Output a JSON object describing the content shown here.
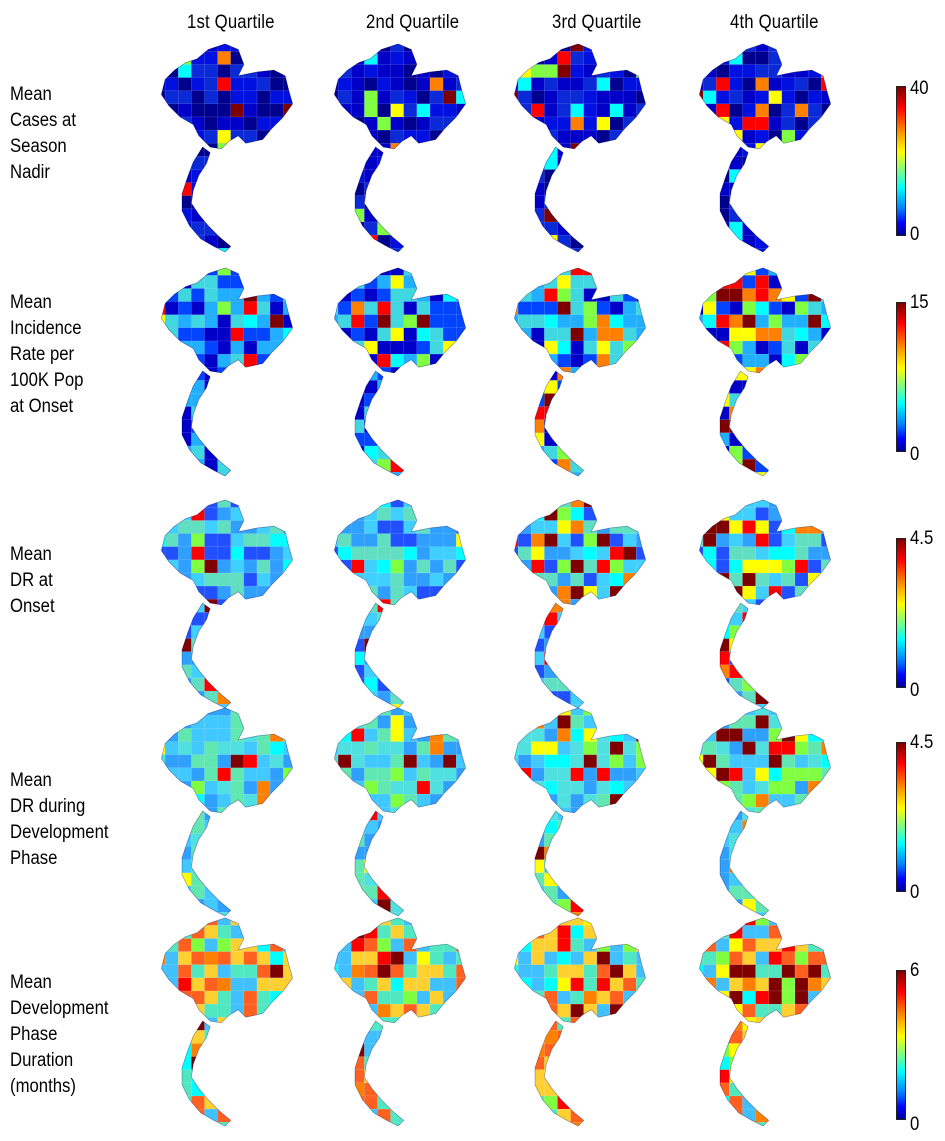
{
  "columns": [
    "1st Quartile",
    "2nd Quartile",
    "3rd Quartile",
    "4th Quartile"
  ],
  "rows": [
    {
      "label": [
        "Mean",
        "Cases at",
        "Season",
        "Nadir"
      ],
      "scale_max": "40",
      "scale_min": "0",
      "palette": [
        "#00008f",
        "#0000c8",
        "#0010e0",
        "#0a2ad8"
      ]
    },
    {
      "label": [
        "Mean",
        "Incidence",
        "Rate per",
        "100K Pop",
        "at Onset"
      ],
      "scale_max": "15",
      "scale_min": "0",
      "palette": [
        "#0000c8",
        "#0044ff",
        "#20b0ff",
        "#40d8e0"
      ]
    },
    {
      "label": [
        "Mean",
        "DR at",
        "Onset"
      ],
      "scale_max": "4.5",
      "scale_min": "0",
      "palette": [
        "#2050ff",
        "#30a0ff",
        "#40d0ff",
        "#60e0c0"
      ]
    },
    {
      "label": [
        "Mean",
        "DR during",
        "Development",
        "Phase"
      ],
      "scale_max": "4.5",
      "scale_min": "0",
      "palette": [
        "#30a0ff",
        "#40c8ff",
        "#50e0e0",
        "#60e8b0"
      ]
    },
    {
      "label": [
        "Mean",
        "Development",
        "Phase",
        "Duration",
        "(months)"
      ],
      "scale_max": "6",
      "scale_min": "0",
      "palette": [
        "#40c0ff",
        "#50e8c0",
        "#ffd030",
        "#ff6020"
      ]
    }
  ],
  "accents": [
    "#7f0000",
    "#ff0000",
    "#ff8000",
    "#ffff00",
    "#80ff40",
    "#00ffff"
  ]
}
